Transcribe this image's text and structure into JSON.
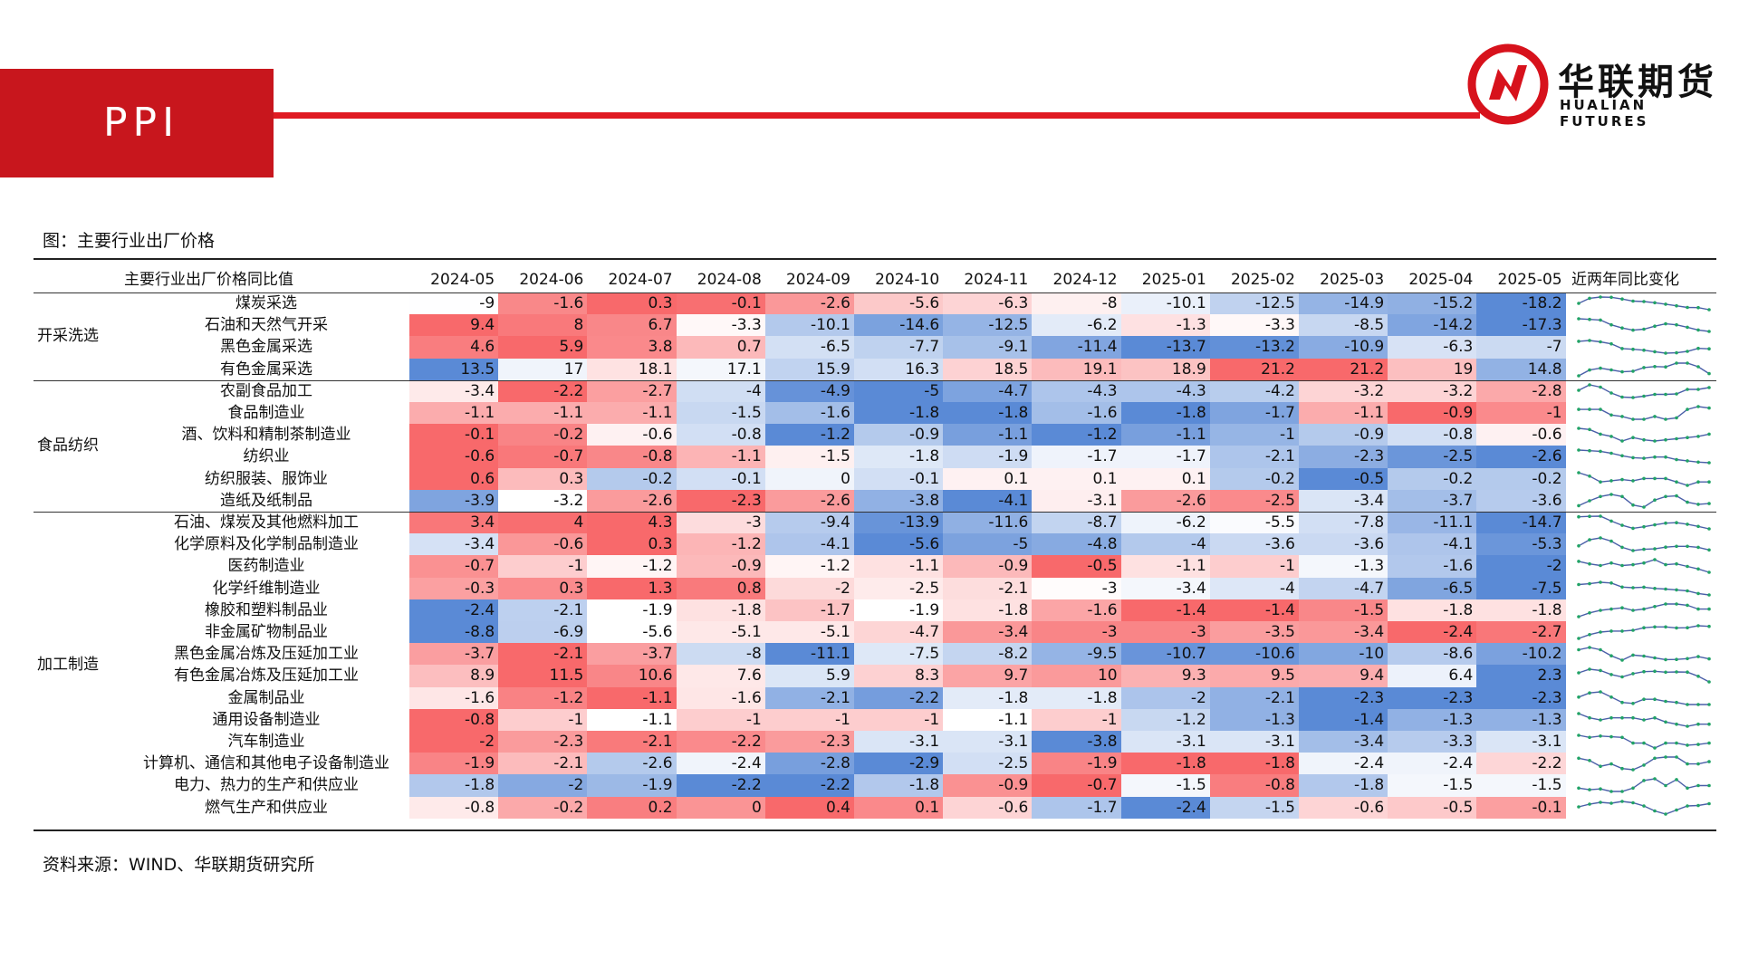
{
  "header": {
    "title": "PPI"
  },
  "logo": {
    "cn": "华联期货",
    "en": "HUALIAN FUTURES"
  },
  "figure_title": "图：主要行业出厂价格",
  "table": {
    "header_label": "主要行业出厂价格同比值",
    "trend_label": "近两年同比变化",
    "columns": [
      "2024-05",
      "2024-06",
      "2024-07",
      "2024-08",
      "2024-09",
      "2024-10",
      "2024-11",
      "2024-12",
      "2025-01",
      "2025-02",
      "2025-03",
      "2025-04",
      "2025-05"
    ],
    "groups": [
      {
        "name": "开采洗选",
        "rows": [
          {
            "name": "煤炭采选",
            "values": [
              -9,
              -1.6,
              0.3,
              -0.1,
              -2.6,
              -5.6,
              -6.3,
              -8,
              -10.1,
              -12.5,
              -14.9,
              -15.2,
              -18.2
            ]
          },
          {
            "name": "石油和天然气开采",
            "values": [
              9.4,
              8,
              6.7,
              -3.3,
              -10.1,
              -14.6,
              -12.5,
              -6.2,
              -1.3,
              -3.3,
              -8.5,
              -14.2,
              -17.3
            ]
          },
          {
            "name": "黑色金属采选",
            "values": [
              4.6,
              5.9,
              3.8,
              0.7,
              -6.5,
              -7.7,
              -9.1,
              -11.4,
              -13.7,
              -13.2,
              -10.9,
              -6.3,
              -7
            ]
          },
          {
            "name": "有色金属采选",
            "values": [
              13.5,
              17,
              18.1,
              17.1,
              15.9,
              16.3,
              18.5,
              19.1,
              18.9,
              21.2,
              21.2,
              19,
              14.8
            ]
          }
        ]
      },
      {
        "name": "食品纺织",
        "rows": [
          {
            "name": "农副食品加工",
            "values": [
              -3.4,
              -2.2,
              -2.7,
              -4,
              -4.9,
              -5,
              -4.7,
              -4.3,
              -4.3,
              -4.2,
              -3.2,
              -3.2,
              -2.8
            ]
          },
          {
            "name": "食品制造业",
            "values": [
              -1.1,
              -1.1,
              -1.1,
              -1.5,
              -1.6,
              -1.8,
              -1.8,
              -1.6,
              -1.8,
              -1.7,
              -1.1,
              -0.9,
              -1
            ]
          },
          {
            "name": "酒、饮料和精制茶制造业",
            "values": [
              -0.1,
              -0.2,
              -0.6,
              -0.8,
              -1.2,
              -0.9,
              -1.1,
              -1.2,
              -1.1,
              -1,
              -0.9,
              -0.8,
              -0.6
            ]
          },
          {
            "name": "纺织业",
            "values": [
              -0.6,
              -0.7,
              -0.8,
              -1.1,
              -1.5,
              -1.8,
              -1.9,
              -1.7,
              -1.7,
              -2.1,
              -2.3,
              -2.5,
              -2.6
            ]
          },
          {
            "name": "纺织服装、服饰业",
            "values": [
              0.6,
              0.3,
              -0.2,
              -0.1,
              0,
              -0.1,
              0.1,
              0.1,
              0.1,
              -0.2,
              -0.5,
              -0.2,
              -0.2
            ]
          },
          {
            "name": "造纸及纸制品",
            "values": [
              -3.9,
              -3.2,
              -2.6,
              -2.3,
              -2.6,
              -3.8,
              -4.1,
              -3.1,
              -2.6,
              -2.5,
              -3.4,
              -3.7,
              -3.6
            ]
          }
        ]
      },
      {
        "name": "加工制造",
        "rows": [
          {
            "name": "石油、煤炭及其他燃料加工",
            "values": [
              3.4,
              4,
              4.3,
              -3,
              -9.4,
              -13.9,
              -11.6,
              -8.7,
              -6.2,
              -5.5,
              -7.8,
              -11.1,
              -14.7
            ]
          },
          {
            "name": "化学原料及化学制品制造业",
            "values": [
              -3.4,
              -0.6,
              0.3,
              -1.2,
              -4.1,
              -5.6,
              -5,
              -4.8,
              -4,
              -3.6,
              -3.6,
              -4.1,
              -5.3
            ]
          },
          {
            "name": "医药制造业",
            "values": [
              -0.7,
              -1,
              -1.2,
              -0.9,
              -1.2,
              -1.1,
              -0.9,
              -0.5,
              -1.1,
              -1,
              -1.3,
              -1.6,
              -2
            ]
          },
          {
            "name": "化学纤维制造业",
            "values": [
              -0.3,
              0.3,
              1.3,
              0.8,
              -2,
              -2.5,
              -2.1,
              -3,
              -3.4,
              -4,
              -4.7,
              -6.5,
              -7.5
            ]
          },
          {
            "name": "橡胶和塑料制品业",
            "values": [
              -2.4,
              -2.1,
              -1.9,
              -1.8,
              -1.7,
              -1.9,
              -1.8,
              -1.6,
              -1.4,
              -1.4,
              -1.5,
              -1.8,
              -1.8
            ]
          },
          {
            "name": "非金属矿物制品业",
            "values": [
              -8.8,
              -6.9,
              -5.6,
              -5.1,
              -5.1,
              -4.7,
              -3.4,
              -3,
              -3,
              -3.5,
              -3.4,
              -2.4,
              -2.7
            ]
          },
          {
            "name": "黑色金属冶炼及压延加工业",
            "values": [
              -3.7,
              -2.1,
              -3.7,
              -8,
              -11.1,
              -7.5,
              -8.2,
              -9.5,
              -10.7,
              -10.6,
              -10,
              -8.6,
              -10.2
            ]
          },
          {
            "name": "有色金属冶炼及压延加工业",
            "values": [
              8.9,
              11.5,
              10.6,
              7.6,
              5.9,
              8.3,
              9.7,
              10,
              9.3,
              9.5,
              9.4,
              6.4,
              2.3
            ]
          },
          {
            "name": "金属制品业",
            "values": [
              -1.6,
              -1.2,
              -1.1,
              -1.6,
              -2.1,
              -2.2,
              -1.8,
              -1.8,
              -2,
              -2.1,
              -2.3,
              -2.3,
              -2.3
            ]
          },
          {
            "name": "通用设备制造业",
            "values": [
              -0.8,
              -1,
              -1.1,
              -1,
              -1,
              -1,
              -1.1,
              -1,
              -1.2,
              -1.3,
              -1.4,
              -1.3,
              -1.3
            ]
          },
          {
            "name": "汽车制造业",
            "values": [
              -2,
              -2.3,
              -2.1,
              -2.2,
              -2.3,
              -3.1,
              -3.1,
              -3.8,
              -3.1,
              -3.1,
              -3.4,
              -3.3,
              -3.1
            ]
          },
          {
            "name": "计算机、通信和其他电子设备制造业",
            "values": [
              -1.9,
              -2.1,
              -2.6,
              -2.4,
              -2.8,
              -2.9,
              -2.5,
              -1.9,
              -1.8,
              -1.8,
              -2.4,
              -2.4,
              -2.2
            ]
          },
          {
            "name": "电力、热力的生产和供应业",
            "values": [
              -1.8,
              -2,
              -1.9,
              -2.2,
              -2.2,
              -1.8,
              -0.9,
              -0.7,
              -1.5,
              -0.8,
              -1.8,
              -1.5,
              -1.5
            ]
          },
          {
            "name": "燃气生产和供应业",
            "values": [
              -0.8,
              -0.2,
              0.2,
              0,
              0.4,
              0.1,
              -0.6,
              -1.7,
              -2.4,
              -1.5,
              -0.6,
              -0.5,
              -0.1
            ]
          }
        ]
      }
    ]
  },
  "colors": {
    "brand_red": "#c8161d",
    "heat_high": "#f8696b",
    "heat_low": "#5a8ad6",
    "heat_mid": "#ffffff",
    "spark_line": "#4a5fa8",
    "spark_marker": "#21a366"
  },
  "source": "资料来源：WIND、华联期货研究所"
}
